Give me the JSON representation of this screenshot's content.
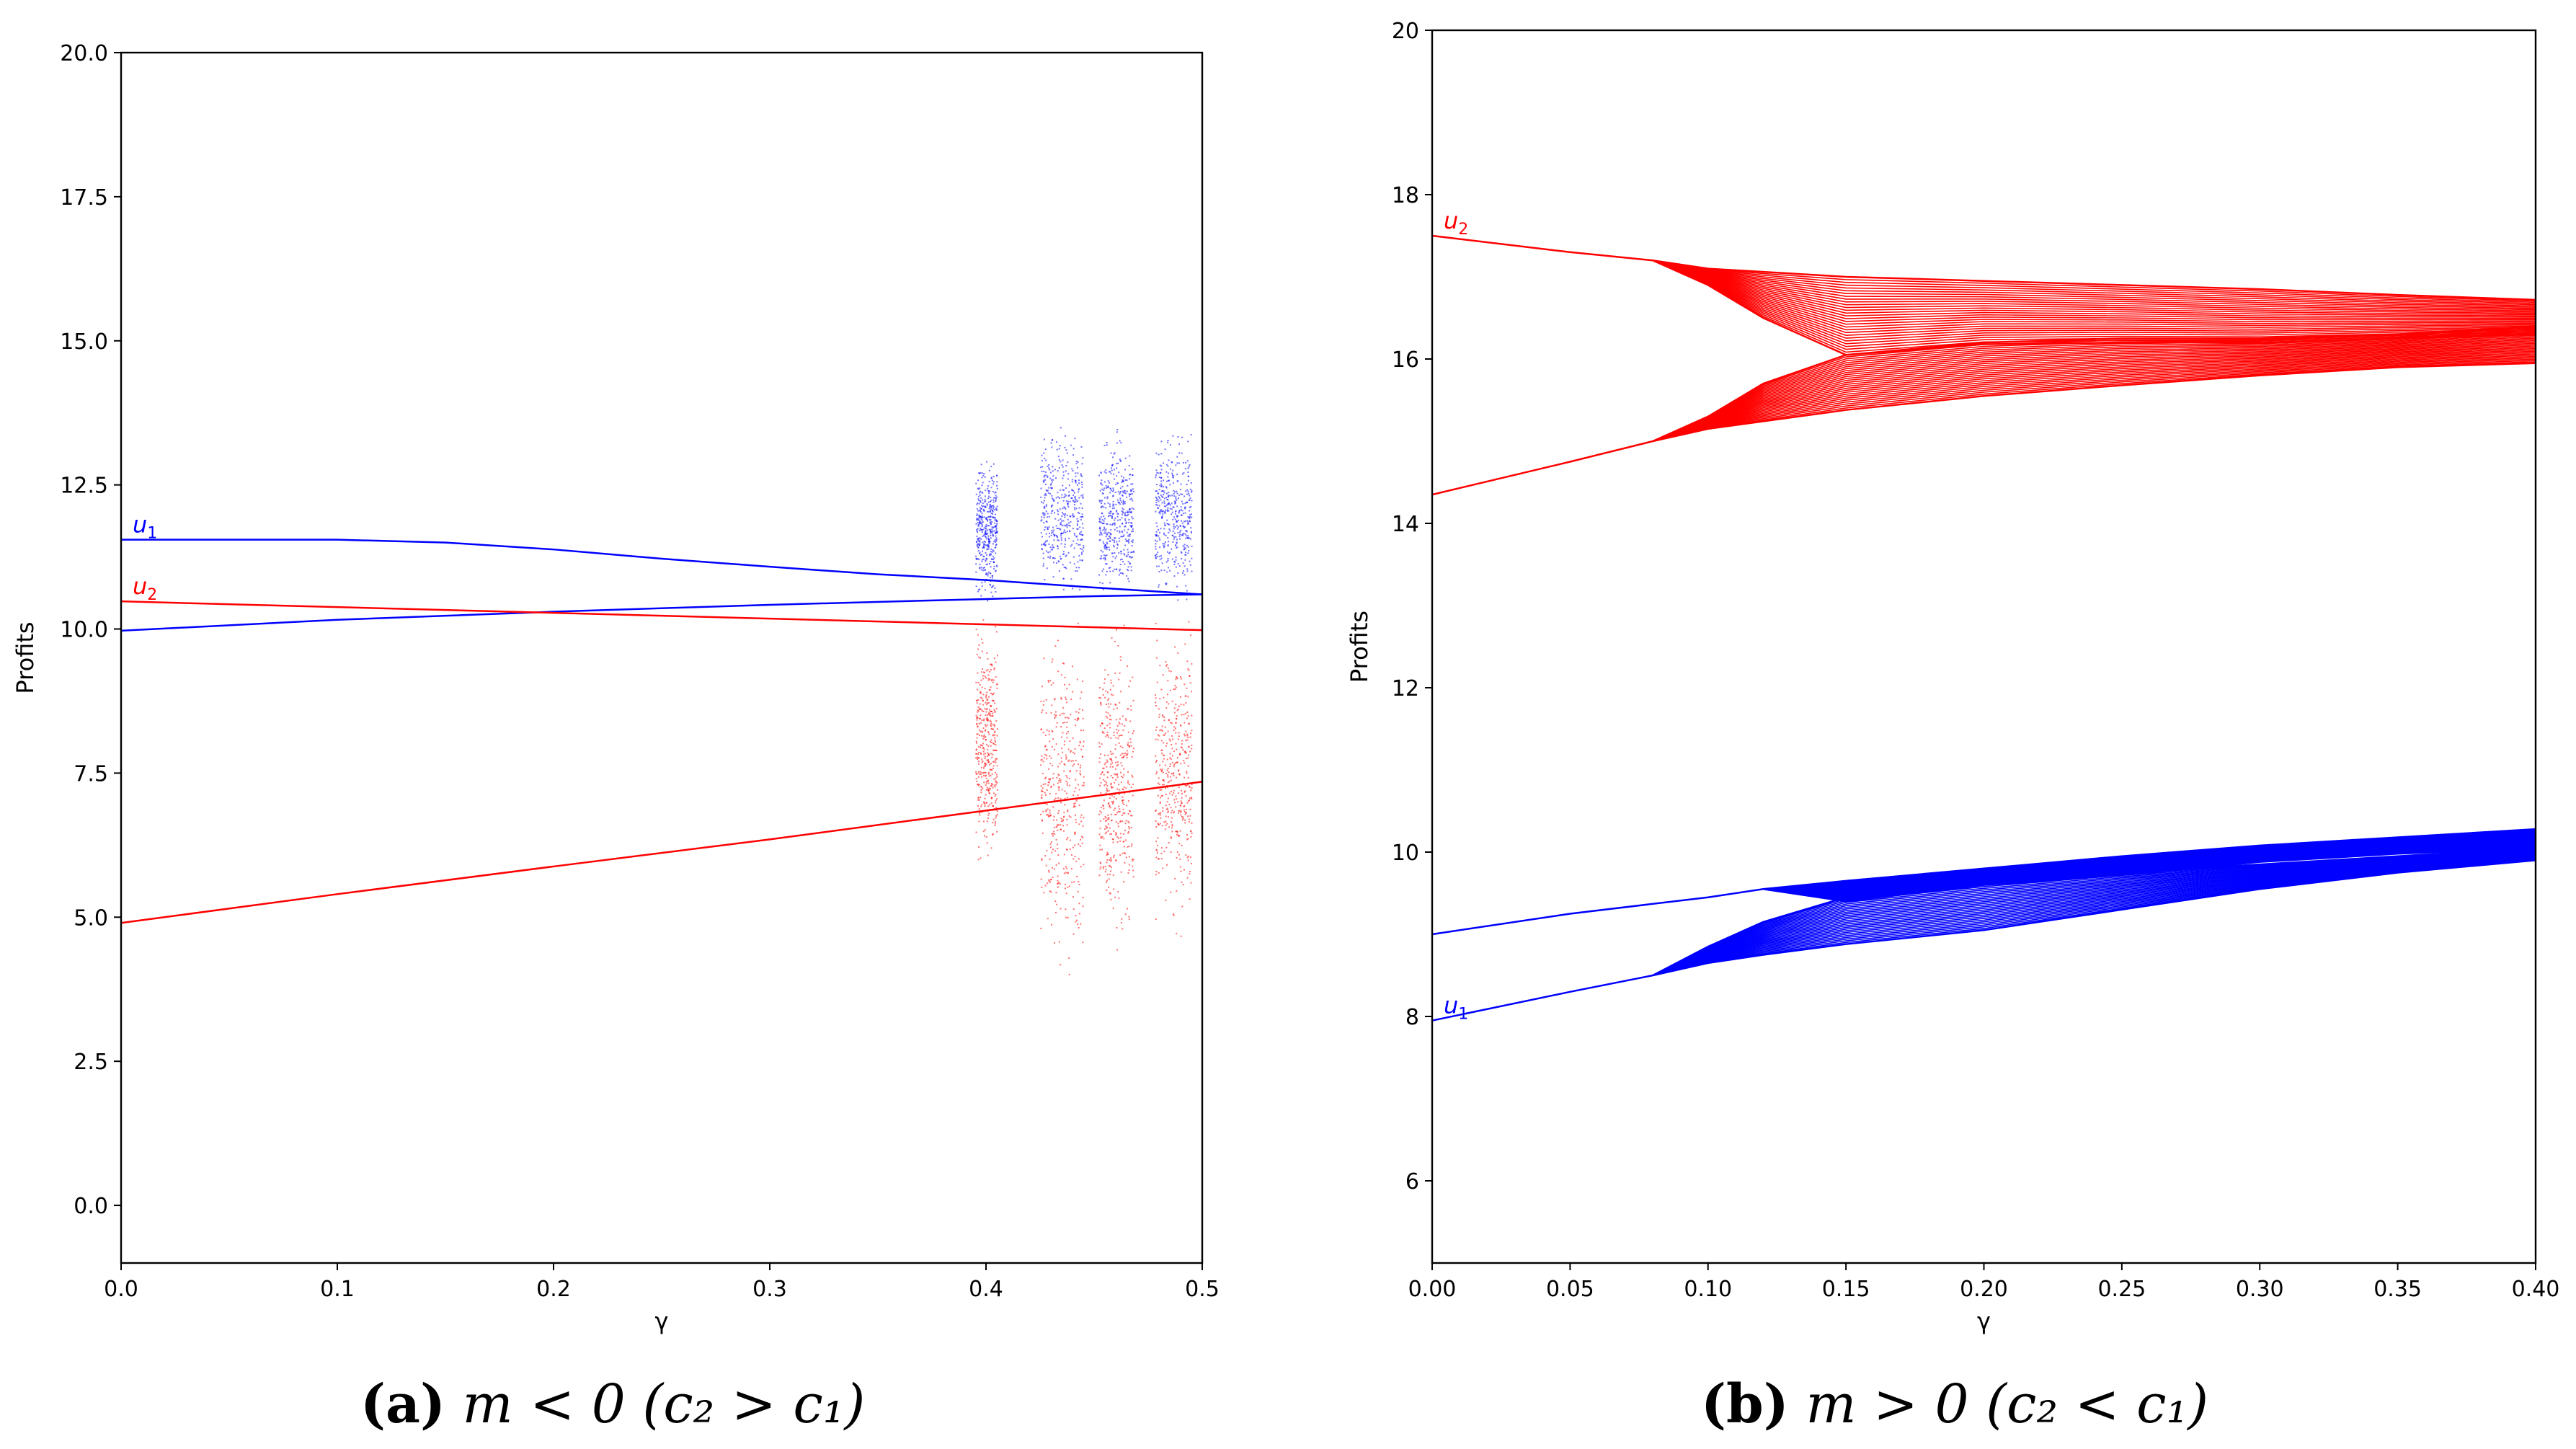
{
  "chart_data": [
    {
      "panel": "a",
      "type": "scatter",
      "caption_letter": "(a)",
      "caption_condition": "m < 0 (c₂ > c₁)",
      "xlabel": "γ",
      "ylabel": "Profits",
      "xlim": [
        0.0,
        0.5
      ],
      "ylim": [
        -1.0,
        20.0
      ],
      "xticks": [
        "0.0",
        "0.1",
        "0.2",
        "0.3",
        "0.4",
        "0.5"
      ],
      "xtick_values": [
        0.0,
        0.1,
        0.2,
        0.3,
        0.4,
        0.5
      ],
      "yticks": [
        "0.0",
        "2.5",
        "5.0",
        "7.5",
        "10.0",
        "12.5",
        "15.0",
        "17.5",
        "20.0"
      ],
      "ytick_values": [
        0.0,
        2.5,
        5.0,
        7.5,
        10.0,
        12.5,
        15.0,
        17.5,
        20.0
      ],
      "series": [
        {
          "name": "u₁ branch A",
          "label": "u",
          "label_sub": "1",
          "color": "#0000ff",
          "x": [
            0.0,
            0.1,
            0.15,
            0.2,
            0.25,
            0.3,
            0.35,
            0.4,
            0.45,
            0.5
          ],
          "y": [
            11.55,
            11.55,
            11.5,
            11.38,
            11.22,
            11.08,
            10.95,
            10.85,
            10.72,
            10.6
          ]
        },
        {
          "name": "u₁ branch B",
          "color": "#0000ff",
          "x": [
            0.0,
            0.1,
            0.2,
            0.3,
            0.4,
            0.45,
            0.5
          ],
          "y": [
            9.97,
            10.16,
            10.3,
            10.42,
            10.52,
            10.57,
            10.6
          ]
        },
        {
          "name": "u₂ branch A",
          "label": "u",
          "label_sub": "2",
          "color": "#ff0000",
          "x": [
            0.0,
            0.1,
            0.2,
            0.3,
            0.4,
            0.45,
            0.5
          ],
          "y": [
            10.48,
            10.38,
            10.28,
            10.18,
            10.08,
            10.03,
            9.98
          ]
        },
        {
          "name": "u₂ branch B",
          "color": "#ff0000",
          "x": [
            0.0,
            0.1,
            0.2,
            0.3,
            0.4,
            0.45,
            0.5
          ],
          "y": [
            4.9,
            5.4,
            5.88,
            6.35,
            6.85,
            7.1,
            7.35
          ]
        }
      ],
      "chaotic_regions": [
        {
          "x_start": 0.395,
          "x_end": 0.405,
          "color": "#0000ff",
          "y_min": 10.3,
          "y_max": 13.2
        },
        {
          "x_start": 0.425,
          "x_end": 0.445,
          "color": "#0000ff",
          "y_min": 10.2,
          "y_max": 13.75
        },
        {
          "x_start": 0.452,
          "x_end": 0.468,
          "color": "#0000ff",
          "y_min": 10.2,
          "y_max": 13.7
        },
        {
          "x_start": 0.478,
          "x_end": 0.495,
          "color": "#0000ff",
          "y_min": 10.3,
          "y_max": 13.7
        },
        {
          "x_start": 0.395,
          "x_end": 0.405,
          "color": "#ff0000",
          "y_min": 5.5,
          "y_max": 10.5
        },
        {
          "x_start": 0.425,
          "x_end": 0.445,
          "color": "#ff0000",
          "y_min": 3.5,
          "y_max": 10.8
        },
        {
          "x_start": 0.452,
          "x_end": 0.468,
          "color": "#ff0000",
          "y_min": 4.0,
          "y_max": 10.5
        },
        {
          "x_start": 0.478,
          "x_end": 0.495,
          "color": "#ff0000",
          "y_min": 4.5,
          "y_max": 10.5
        }
      ]
    },
    {
      "panel": "b",
      "type": "line",
      "caption_letter": "(b)",
      "caption_condition": "m > 0 (c₂ < c₁)",
      "xlabel": "γ",
      "ylabel": "Profits",
      "xlim": [
        0.0,
        0.4
      ],
      "ylim": [
        5.0,
        20.0
      ],
      "xticks": [
        "0.00",
        "0.05",
        "0.10",
        "0.15",
        "0.20",
        "0.25",
        "0.30",
        "0.35",
        "0.40"
      ],
      "xtick_values": [
        0.0,
        0.05,
        0.1,
        0.15,
        0.2,
        0.25,
        0.3,
        0.35,
        0.4
      ],
      "yticks": [
        "6",
        "8",
        "10",
        "12",
        "14",
        "16",
        "18",
        "20"
      ],
      "ytick_values": [
        6,
        8,
        10,
        12,
        14,
        16,
        18,
        20
      ],
      "series": [
        {
          "name": "u₂ upper",
          "label": "u",
          "label_sub": "2",
          "color": "#ff0000",
          "x": [
            0.0,
            0.05,
            0.08,
            0.1,
            0.15,
            0.2,
            0.25,
            0.3,
            0.35,
            0.4
          ],
          "y": [
            17.5,
            17.3,
            17.2,
            17.1,
            17.0,
            16.95,
            16.9,
            16.85,
            16.78,
            16.72
          ]
        },
        {
          "name": "u₂ upper inner",
          "color": "#ff0000",
          "x": [
            0.08,
            0.1,
            0.12,
            0.15,
            0.2,
            0.25,
            0.3,
            0.35,
            0.4
          ],
          "y": [
            17.2,
            16.9,
            16.5,
            16.05,
            16.18,
            16.2,
            16.2,
            16.25,
            16.3
          ]
        },
        {
          "name": "u₂ lower",
          "color": "#ff0000",
          "x": [
            0.0,
            0.05,
            0.08,
            0.1,
            0.15,
            0.2,
            0.25,
            0.3,
            0.35,
            0.4
          ],
          "y": [
            14.35,
            14.75,
            15.0,
            15.15,
            15.38,
            15.55,
            15.68,
            15.8,
            15.9,
            15.95
          ]
        },
        {
          "name": "u₂ lower inner",
          "color": "#ff0000",
          "x": [
            0.08,
            0.1,
            0.12,
            0.15,
            0.2,
            0.25,
            0.3,
            0.35,
            0.4
          ],
          "y": [
            15.0,
            15.3,
            15.7,
            16.05,
            16.2,
            16.25,
            16.25,
            16.3,
            16.4
          ]
        },
        {
          "name": "u₁ upper",
          "color": "#0000ff",
          "x": [
            0.0,
            0.05,
            0.1,
            0.12,
            0.15,
            0.2,
            0.25,
            0.3,
            0.35,
            0.4
          ],
          "y": [
            9.0,
            9.25,
            9.45,
            9.55,
            9.65,
            9.8,
            9.95,
            10.08,
            10.18,
            10.28
          ]
        },
        {
          "name": "u₁ upper inner",
          "color": "#0000ff",
          "x": [
            0.12,
            0.15,
            0.2,
            0.25,
            0.3,
            0.35,
            0.4
          ],
          "y": [
            9.55,
            9.4,
            9.6,
            9.72,
            9.88,
            9.98,
            10.05
          ]
        },
        {
          "name": "u₁ lower",
          "label": "u",
          "label_sub": "1",
          "color": "#0000ff",
          "x": [
            0.0,
            0.05,
            0.08,
            0.1,
            0.12,
            0.15,
            0.2,
            0.25,
            0.3,
            0.35,
            0.4
          ],
          "y": [
            7.95,
            8.3,
            8.5,
            8.65,
            8.75,
            8.88,
            9.05,
            9.3,
            9.55,
            9.75,
            9.9
          ]
        },
        {
          "name": "u₁ lower inner",
          "color": "#0000ff",
          "x": [
            0.08,
            0.1,
            0.12,
            0.15,
            0.2,
            0.25,
            0.3,
            0.35,
            0.4
          ],
          "y": [
            8.5,
            8.85,
            9.15,
            9.45,
            9.62,
            9.75,
            9.85,
            9.95,
            10.05
          ]
        }
      ]
    }
  ]
}
